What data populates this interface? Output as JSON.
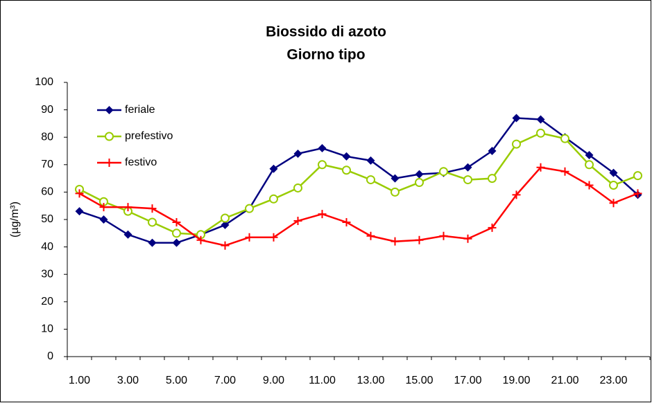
{
  "chart_data": {
    "type": "line",
    "title": "Biossido di azoto",
    "subtitle": "Giorno tipo",
    "y_label": "(µg/m³)",
    "categories": [
      "1.00",
      null,
      "3.00",
      null,
      "5.00",
      null,
      "7.00",
      null,
      "9.00",
      null,
      "11.00",
      null,
      "13.00",
      null,
      "15.00",
      null,
      "17.00",
      null,
      "19.00",
      null,
      "21.00",
      null,
      "23.00",
      null
    ],
    "series": [
      {
        "name": "feriale",
        "color": "#000080",
        "marker": "diamond",
        "values": [
          53,
          50,
          44.5,
          41.5,
          41.5,
          44.5,
          48,
          54,
          68.5,
          74,
          76,
          73,
          71.5,
          65,
          66.5,
          67,
          69,
          75,
          87,
          86.5,
          80,
          73.5,
          67,
          59
        ]
      },
      {
        "name": "prefestivo",
        "color": "#99cc00",
        "marker": "circle",
        "values": [
          61,
          56.5,
          53,
          49,
          45,
          44.5,
          50.5,
          54,
          57.5,
          61.5,
          70,
          68,
          64.5,
          60,
          63.5,
          67.5,
          64.5,
          65,
          77.5,
          81.5,
          79.5,
          70,
          62.5,
          66
        ]
      },
      {
        "name": "festivo",
        "color": "#ff0000",
        "marker": "plus",
        "values": [
          59.5,
          54.5,
          54.5,
          54,
          49,
          42.5,
          40.5,
          43.5,
          43.5,
          49.5,
          52,
          49,
          44,
          42,
          42.5,
          44,
          43,
          47,
          59,
          69,
          67.5,
          62.5,
          56,
          59.5
        ]
      }
    ],
    "ylim": [
      0,
      100
    ],
    "yticks": [
      0,
      10,
      20,
      30,
      40,
      50,
      60,
      70,
      80,
      90,
      100
    ],
    "grid": false
  }
}
